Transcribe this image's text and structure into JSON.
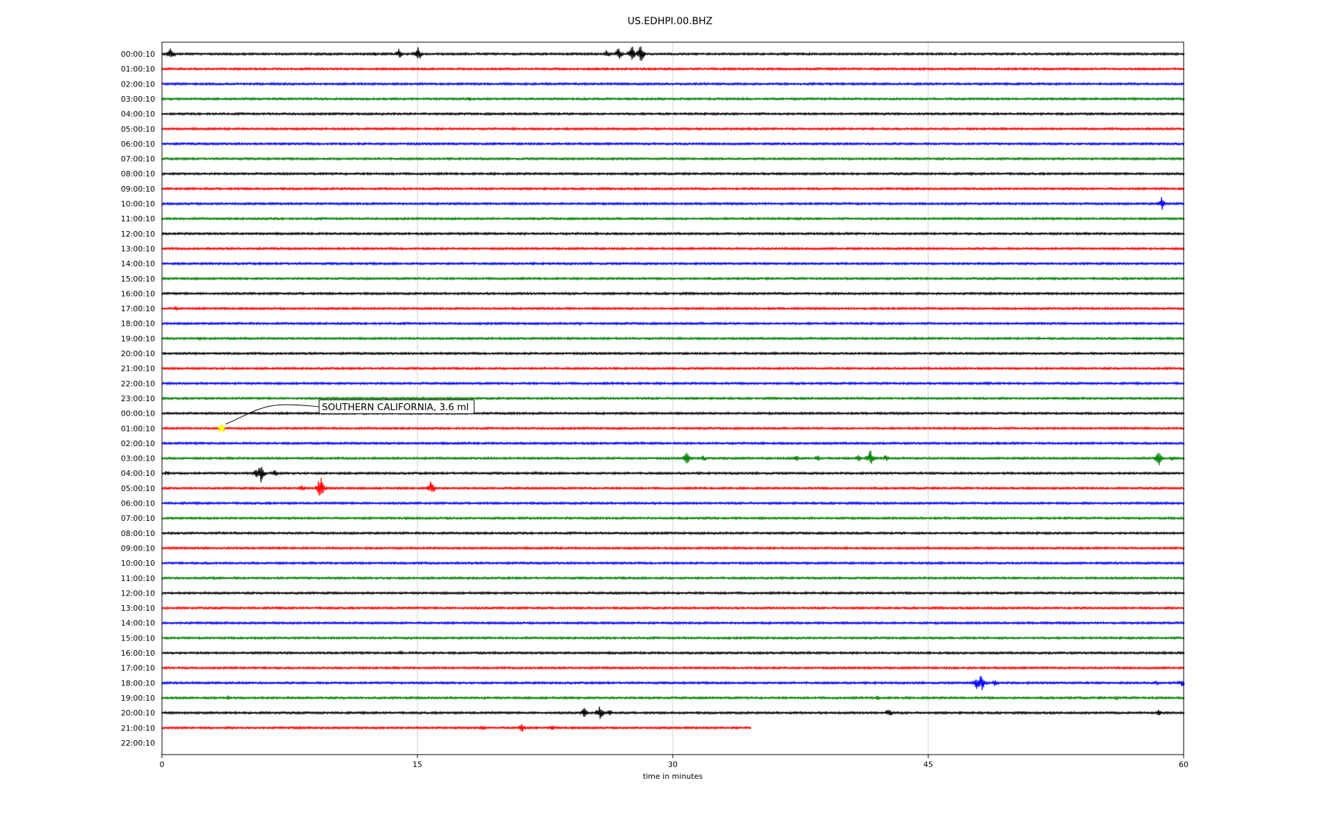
{
  "chart_data": {
    "type": "line",
    "title": "US.EDHPI.00.BHZ",
    "xlabel": "time in minutes",
    "ylabel": "",
    "xlim": [
      0,
      60
    ],
    "x_ticks": [
      "0",
      "15",
      "30",
      "45",
      "60"
    ],
    "grid": "vertical lines at 15-minute intervals",
    "line_colors": [
      "#000000",
      "#ff0000",
      "#0000ff",
      "#008000"
    ],
    "rows": [
      {
        "label": "00:00:10",
        "end": 60,
        "events": [
          [
            0.5,
            10
          ],
          [
            12.5,
            4
          ],
          [
            13.9,
            8
          ],
          [
            15,
            14
          ],
          [
            26.1,
            6
          ],
          [
            26.8,
            10
          ],
          [
            27.6,
            14
          ],
          [
            28.1,
            14
          ]
        ]
      },
      {
        "label": "01:00:10",
        "end": 60,
        "events": []
      },
      {
        "label": "02:00:10",
        "end": 60,
        "events": []
      },
      {
        "label": "03:00:10",
        "end": 60,
        "events": [
          [
            18,
            3
          ]
        ]
      },
      {
        "label": "04:00:10",
        "end": 60,
        "events": []
      },
      {
        "label": "05:00:10",
        "end": 60,
        "events": []
      },
      {
        "label": "06:00:10",
        "end": 60,
        "events": []
      },
      {
        "label": "07:00:10",
        "end": 60,
        "events": []
      },
      {
        "label": "08:00:10",
        "end": 60,
        "events": []
      },
      {
        "label": "09:00:10",
        "end": 60,
        "events": []
      },
      {
        "label": "10:00:10",
        "end": 60,
        "events": [
          [
            58.7,
            10
          ]
        ]
      },
      {
        "label": "11:00:10",
        "end": 60,
        "events": []
      },
      {
        "label": "12:00:10",
        "end": 60,
        "events": []
      },
      {
        "label": "13:00:10",
        "end": 60,
        "events": []
      },
      {
        "label": "14:00:10",
        "end": 60,
        "events": []
      },
      {
        "label": "15:00:10",
        "end": 60,
        "events": []
      },
      {
        "label": "16:00:10",
        "end": 60,
        "events": []
      },
      {
        "label": "17:00:10",
        "end": 60,
        "events": [
          [
            0.8,
            4
          ]
        ]
      },
      {
        "label": "18:00:10",
        "end": 60,
        "events": [
          [
            24.5,
            3
          ]
        ]
      },
      {
        "label": "19:00:10",
        "end": 60,
        "events": [
          [
            2.1,
            4
          ]
        ]
      },
      {
        "label": "20:00:10",
        "end": 60,
        "events": []
      },
      {
        "label": "21:00:10",
        "end": 60,
        "events": []
      },
      {
        "label": "22:00:10",
        "end": 60,
        "events": [
          [
            48.5,
            4
          ]
        ]
      },
      {
        "label": "23:00:10",
        "end": 60,
        "events": []
      },
      {
        "label": "00:00:10",
        "end": 60,
        "events": []
      },
      {
        "label": "01:00:10",
        "end": 60,
        "events": []
      },
      {
        "label": "02:00:10",
        "end": 60,
        "events": []
      },
      {
        "label": "03:00:10",
        "end": 60,
        "events": [
          [
            30.8,
            12
          ],
          [
            31.8,
            5
          ],
          [
            37.2,
            7
          ],
          [
            38.5,
            5
          ],
          [
            40.9,
            5
          ],
          [
            41.6,
            14
          ],
          [
            42.5,
            6
          ],
          [
            58.5,
            14
          ],
          [
            59.3,
            5
          ]
        ]
      },
      {
        "label": "04:00:10",
        "end": 60,
        "events": [
          [
            0.3,
            5
          ],
          [
            5.5,
            7
          ],
          [
            5.8,
            16
          ],
          [
            6.6,
            6
          ],
          [
            21.9,
            3
          ]
        ]
      },
      {
        "label": "05:00:10",
        "end": 60,
        "events": [
          [
            8.2,
            6
          ],
          [
            9.3,
            22
          ],
          [
            15.8,
            13
          ]
        ]
      },
      {
        "label": "06:00:10",
        "end": 60,
        "events": []
      },
      {
        "label": "07:00:10",
        "end": 60,
        "events": []
      },
      {
        "label": "08:00:10",
        "end": 60,
        "events": []
      },
      {
        "label": "09:00:10",
        "end": 60,
        "events": []
      },
      {
        "label": "10:00:10",
        "end": 60,
        "events": []
      },
      {
        "label": "11:00:10",
        "end": 60,
        "events": [
          [
            3,
            3
          ]
        ]
      },
      {
        "label": "12:00:10",
        "end": 60,
        "events": []
      },
      {
        "label": "13:00:10",
        "end": 60,
        "events": []
      },
      {
        "label": "14:00:10",
        "end": 60,
        "events": []
      },
      {
        "label": "15:00:10",
        "end": 60,
        "events": []
      },
      {
        "label": "16:00:10",
        "end": 60,
        "events": [
          [
            14,
            4
          ]
        ]
      },
      {
        "label": "17:00:10",
        "end": 60,
        "events": []
      },
      {
        "label": "18:00:10",
        "end": 60,
        "events": [
          [
            47.8,
            10
          ],
          [
            48.1,
            14
          ],
          [
            48.9,
            6
          ],
          [
            58.4,
            4
          ],
          [
            59.9,
            8
          ]
        ]
      },
      {
        "label": "19:00:10",
        "end": 60,
        "events": [
          [
            3.9,
            4
          ],
          [
            42,
            4
          ],
          [
            56,
            4
          ]
        ]
      },
      {
        "label": "20:00:10",
        "end": 60,
        "events": [
          [
            24.8,
            9
          ],
          [
            25.7,
            12
          ],
          [
            26.3,
            5
          ],
          [
            42.7,
            8
          ],
          [
            58.5,
            6
          ]
        ]
      },
      {
        "label": "21:00:10",
        "end": 34.6,
        "events": [
          [
            18.8,
            5
          ],
          [
            21.1,
            9
          ],
          [
            22.9,
            5
          ]
        ]
      },
      {
        "label": "22:00:10",
        "end": 0,
        "events": []
      }
    ],
    "annotations": [
      {
        "text": "SOUTHERN CALIFORNIA, 3.6 ml",
        "row": 25,
        "x": 3.5,
        "marker": "star",
        "marker_color": "#ffff00"
      }
    ]
  }
}
